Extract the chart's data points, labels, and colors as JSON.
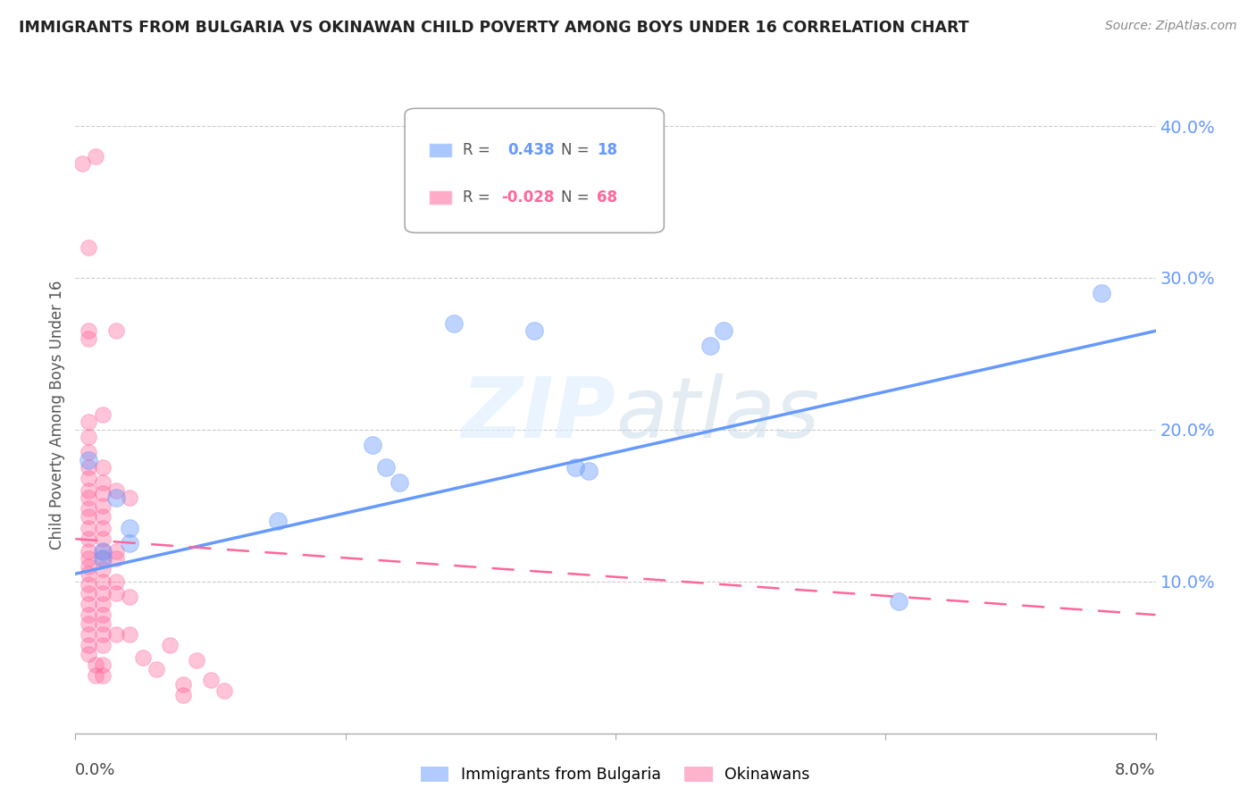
{
  "title": "IMMIGRANTS FROM BULGARIA VS OKINAWAN CHILD POVERTY AMONG BOYS UNDER 16 CORRELATION CHART",
  "source": "Source: ZipAtlas.com",
  "ylabel": "Child Poverty Among Boys Under 16",
  "xlim": [
    0.0,
    0.08
  ],
  "ylim": [
    0.0,
    0.42
  ],
  "yticks": [
    0.1,
    0.2,
    0.3,
    0.4
  ],
  "ytick_labels": [
    "10.0%",
    "20.0%",
    "30.0%",
    "40.0%"
  ],
  "grid_color": "#cccccc",
  "blue_color": "#6699ff",
  "pink_color": "#ff6699",
  "blue_scatter": [
    [
      0.001,
      0.18
    ],
    [
      0.002,
      0.115
    ],
    [
      0.002,
      0.12
    ],
    [
      0.003,
      0.155
    ],
    [
      0.004,
      0.135
    ],
    [
      0.004,
      0.125
    ],
    [
      0.015,
      0.14
    ],
    [
      0.022,
      0.19
    ],
    [
      0.023,
      0.175
    ],
    [
      0.024,
      0.165
    ],
    [
      0.028,
      0.27
    ],
    [
      0.034,
      0.265
    ],
    [
      0.037,
      0.175
    ],
    [
      0.038,
      0.173
    ],
    [
      0.047,
      0.255
    ],
    [
      0.048,
      0.265
    ],
    [
      0.061,
      0.087
    ],
    [
      0.076,
      0.29
    ]
  ],
  "pink_scatter": [
    [
      0.0005,
      0.375
    ],
    [
      0.001,
      0.32
    ],
    [
      0.0015,
      0.38
    ],
    [
      0.001,
      0.265
    ],
    [
      0.001,
      0.26
    ],
    [
      0.001,
      0.205
    ],
    [
      0.001,
      0.195
    ],
    [
      0.001,
      0.185
    ],
    [
      0.001,
      0.175
    ],
    [
      0.001,
      0.168
    ],
    [
      0.001,
      0.16
    ],
    [
      0.001,
      0.155
    ],
    [
      0.001,
      0.148
    ],
    [
      0.001,
      0.143
    ],
    [
      0.001,
      0.135
    ],
    [
      0.001,
      0.128
    ],
    [
      0.001,
      0.12
    ],
    [
      0.001,
      0.115
    ],
    [
      0.001,
      0.11
    ],
    [
      0.001,
      0.105
    ],
    [
      0.001,
      0.098
    ],
    [
      0.001,
      0.092
    ],
    [
      0.001,
      0.085
    ],
    [
      0.001,
      0.078
    ],
    [
      0.001,
      0.072
    ],
    [
      0.001,
      0.065
    ],
    [
      0.001,
      0.058
    ],
    [
      0.001,
      0.052
    ],
    [
      0.0015,
      0.045
    ],
    [
      0.0015,
      0.038
    ],
    [
      0.002,
      0.21
    ],
    [
      0.002,
      0.175
    ],
    [
      0.002,
      0.165
    ],
    [
      0.002,
      0.158
    ],
    [
      0.002,
      0.15
    ],
    [
      0.002,
      0.143
    ],
    [
      0.002,
      0.135
    ],
    [
      0.002,
      0.128
    ],
    [
      0.002,
      0.12
    ],
    [
      0.002,
      0.115
    ],
    [
      0.002,
      0.108
    ],
    [
      0.002,
      0.1
    ],
    [
      0.002,
      0.092
    ],
    [
      0.002,
      0.085
    ],
    [
      0.002,
      0.078
    ],
    [
      0.002,
      0.072
    ],
    [
      0.002,
      0.065
    ],
    [
      0.002,
      0.058
    ],
    [
      0.002,
      0.045
    ],
    [
      0.002,
      0.038
    ],
    [
      0.003,
      0.265
    ],
    [
      0.003,
      0.16
    ],
    [
      0.003,
      0.12
    ],
    [
      0.003,
      0.115
    ],
    [
      0.003,
      0.1
    ],
    [
      0.003,
      0.092
    ],
    [
      0.003,
      0.065
    ],
    [
      0.004,
      0.155
    ],
    [
      0.004,
      0.09
    ],
    [
      0.004,
      0.065
    ],
    [
      0.005,
      0.05
    ],
    [
      0.006,
      0.042
    ],
    [
      0.007,
      0.058
    ],
    [
      0.008,
      0.032
    ],
    [
      0.008,
      0.025
    ],
    [
      0.009,
      0.048
    ],
    [
      0.01,
      0.035
    ],
    [
      0.011,
      0.028
    ]
  ],
  "blue_line_x": [
    0.0,
    0.08
  ],
  "blue_line_y": [
    0.105,
    0.265
  ],
  "pink_line_x": [
    0.0,
    0.08
  ],
  "pink_line_y": [
    0.128,
    0.078
  ],
  "watermark_zip": "ZIP",
  "watermark_atlas": "atlas"
}
